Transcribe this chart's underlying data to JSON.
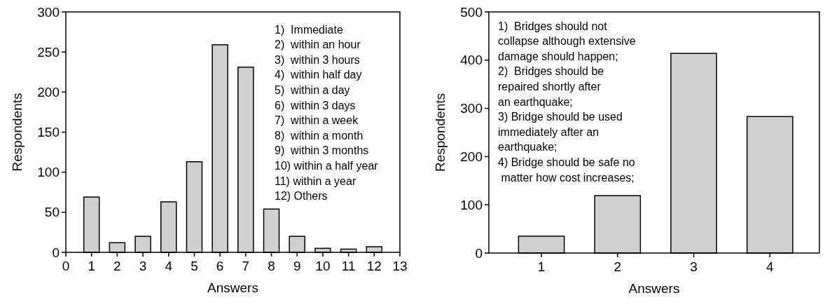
{
  "chart_data": [
    {
      "type": "bar",
      "xlabel": "Answers",
      "ylabel": "Respondents",
      "x": [
        1,
        2,
        3,
        4,
        5,
        6,
        7,
        8,
        9,
        10,
        11,
        12
      ],
      "values": [
        69,
        12,
        20,
        63,
        113,
        259,
        231,
        54,
        20,
        5,
        4,
        7
      ],
      "color": "#d0d0d0",
      "xlim": [
        0,
        13
      ],
      "xticks": [
        0,
        1,
        2,
        3,
        4,
        5,
        6,
        7,
        8,
        9,
        10,
        11,
        12,
        13
      ],
      "ylim": [
        0,
        300
      ],
      "yticks": [
        0,
        50,
        100,
        150,
        200,
        250,
        300
      ],
      "annotations": [
        "1)  Immediate",
        "2)  within an hour",
        "3)  within 3 hours",
        "4)  within half day",
        "5)  within a day",
        "6)  within 3 days",
        "7)  within a week",
        "8)  within a month",
        "9)  within 3 months",
        "10) within a half year",
        "11) within a year",
        "12) Others"
      ]
    },
    {
      "type": "bar",
      "xlabel": "Answers",
      "ylabel": "Respondents",
      "x": [
        1,
        2,
        3,
        4
      ],
      "values": [
        35,
        119,
        414,
        283
      ],
      "color": "#d0d0d0",
      "xlim": [
        0.31,
        4.65
      ],
      "xticks": [
        1,
        2,
        3,
        4
      ],
      "ylim": [
        0,
        500
      ],
      "yticks": [
        0,
        100,
        200,
        300,
        400,
        500
      ],
      "annotations": [
        "1)  Bridges should not\ncollapse although extensive\ndamage should happen;",
        "2)  Bridges should be\nrepaired shortly after\nan earthquake;",
        "3) Bridge should be used\nimmediately after an\nearthquake;",
        "4) Bridge should be safe no\n matter how cost increases;"
      ]
    }
  ]
}
